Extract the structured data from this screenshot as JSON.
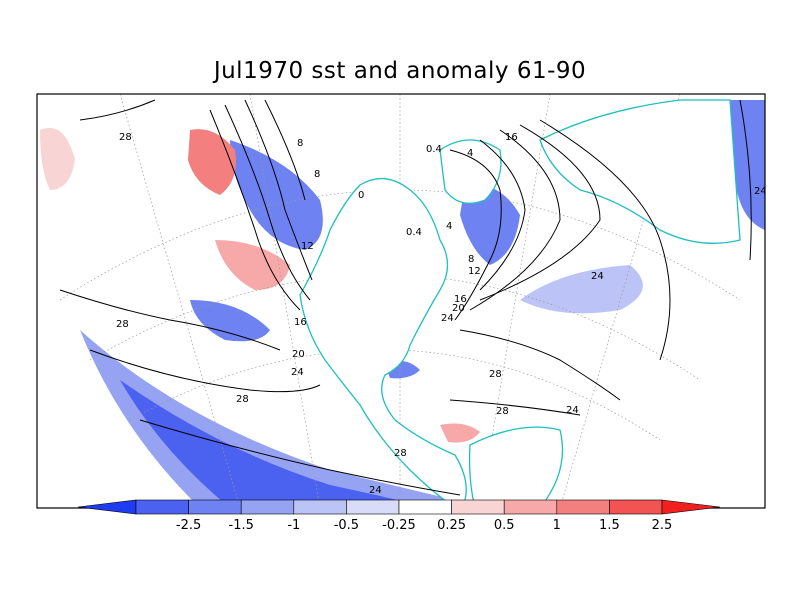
{
  "title": "Jul1970 sst and anomaly 61-90",
  "colorbar": {
    "tick_labels": [
      "-2.5",
      "-1.5",
      "-1",
      "-0.5",
      "-0.25",
      "0.25",
      "0.5",
      "1",
      "1.5",
      "2.5"
    ],
    "colors": [
      "#1f3cf2",
      "#4b61f0",
      "#6f82f2",
      "#96a3f3",
      "#bcc3f6",
      "#d8dcf8",
      "#ffffff",
      "#f9d4d4",
      "#f7a9a9",
      "#f47f7f",
      "#f25454",
      "#f21f1f"
    ]
  },
  "contour_labels": [
    "28",
    "28",
    "24",
    "24",
    "28",
    "28",
    "24",
    "20",
    "16",
    "12",
    "8",
    "8",
    "16",
    "8",
    "12",
    "16",
    "20",
    "24",
    "28",
    "28",
    "24",
    "24",
    "0",
    "0.4",
    "4",
    "4",
    "0.4"
  ],
  "colors": {
    "coastline": "#1fbfbf",
    "frame": "#000000",
    "contour": "#000000",
    "grid": "#999999"
  }
}
